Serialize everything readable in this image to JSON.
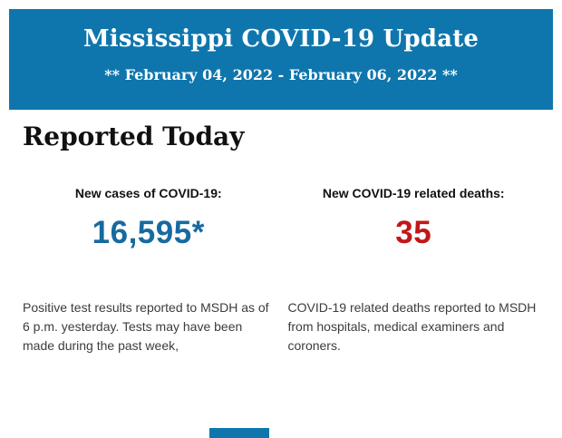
{
  "colors": {
    "banner_blue": "#0f76ad",
    "cases_blue": "#176aa0",
    "deaths_red": "#c11718",
    "heading_black": "#111111",
    "body_gray": "#3c3c3c"
  },
  "banner": {
    "title": "Mississippi COVID-19 Update",
    "date_range": "** February 04, 2022 - February 06, 2022 **"
  },
  "main": {
    "heading": "Reported Today",
    "stats": [
      {
        "label": "New cases of COVID-19:",
        "value": "16,595*",
        "description": "Positive test results reported to MSDH as of 6 p.m. yesterday. Tests may have been made during the past week,"
      },
      {
        "label": "New COVID-19 related deaths:",
        "value": "35",
        "description": "COVID-19 related deaths reported to MSDH from hospitals, medical examiners and coroners."
      }
    ]
  }
}
